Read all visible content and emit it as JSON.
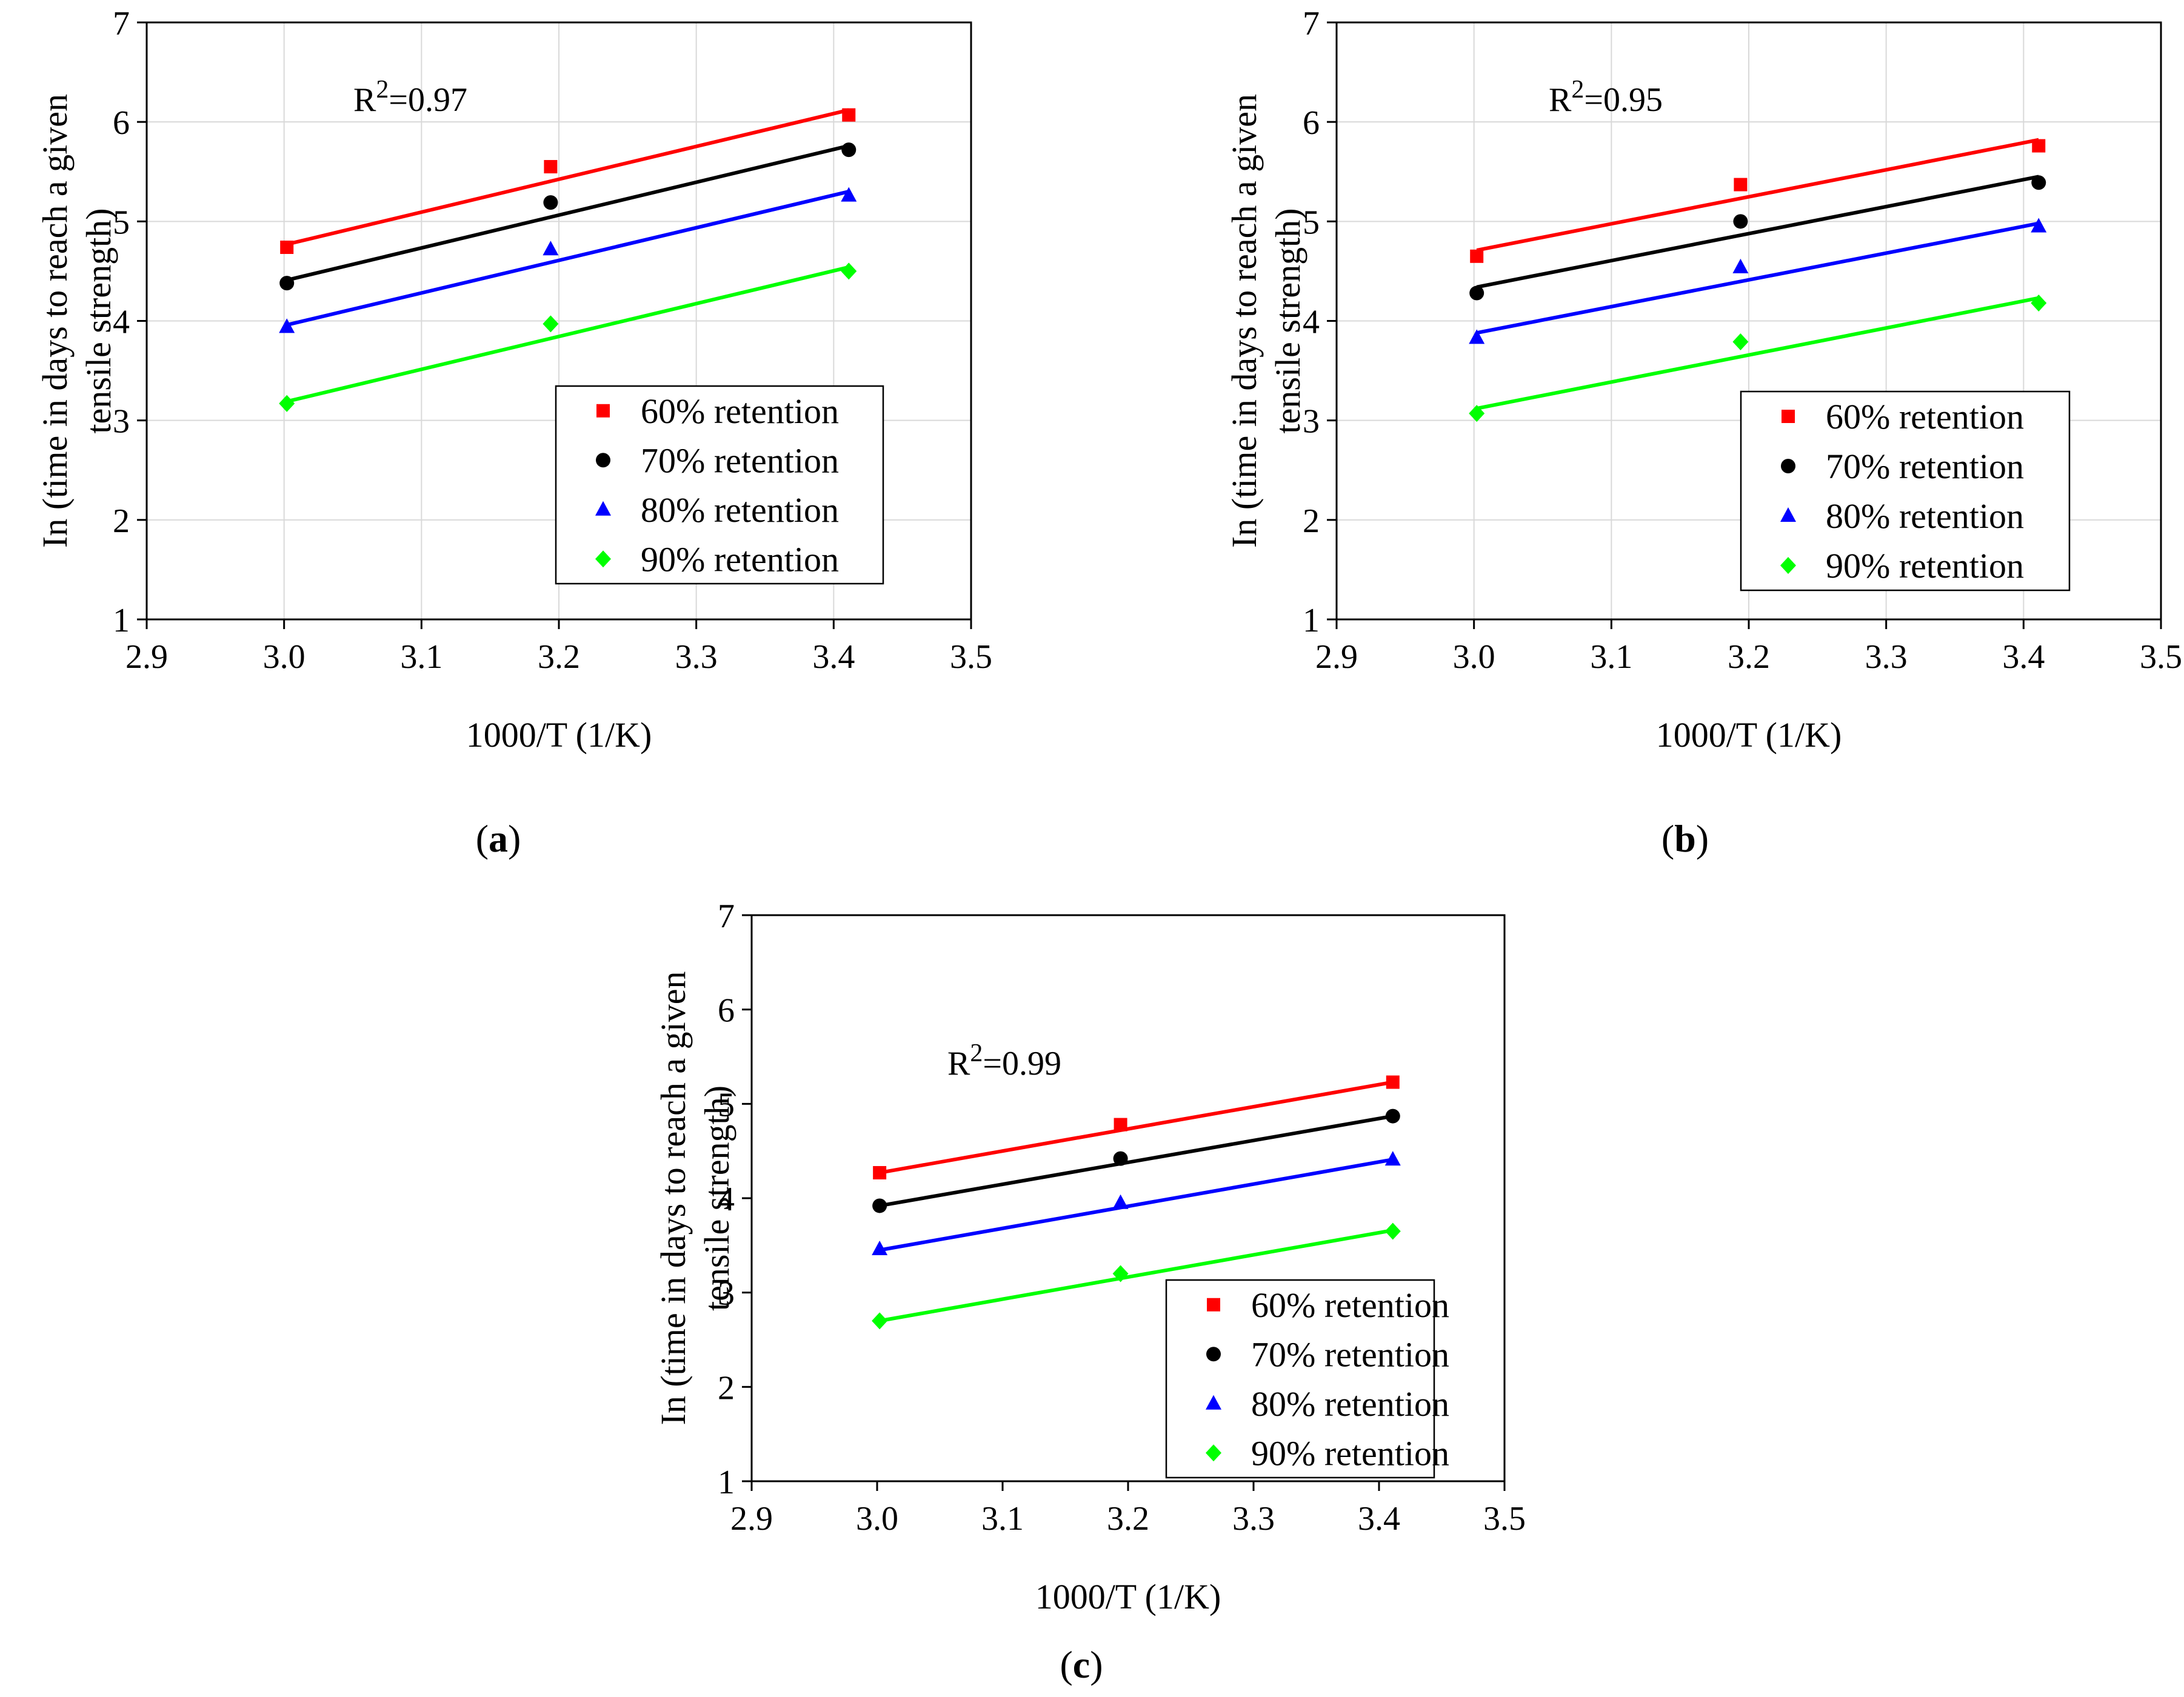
{
  "chart_data": [
    {
      "type": "scatter",
      "panel_label": "a",
      "xlabel": "1000/T (1/K)",
      "ylabel_lines": [
        "In (time in days to reach a given",
        "tensile strength)"
      ],
      "xlim": [
        2.9,
        3.5
      ],
      "ylim": [
        1,
        7
      ],
      "xticks": [
        "2.9",
        "3.0",
        "3.1",
        "3.2",
        "3.3",
        "3.4",
        "3.5"
      ],
      "yticks": [
        "1",
        "2",
        "3",
        "4",
        "5",
        "6",
        "7"
      ],
      "grid": true,
      "legend_position": "bottom-right",
      "annotation": {
        "prefix": "R",
        "sup": "2",
        "suffix": "=0.97"
      },
      "series": [
        {
          "name": "60% retention",
          "marker": "square",
          "color": "#ff0000",
          "x": [
            3.002,
            3.194,
            3.411
          ],
          "y": [
            4.74,
            5.55,
            6.07
          ],
          "fit": [
            4.77,
            6.12
          ]
        },
        {
          "name": "70% retention",
          "marker": "circle",
          "color": "#000000",
          "x": [
            3.002,
            3.194,
            3.411
          ],
          "y": [
            4.38,
            5.19,
            5.72
          ],
          "fit": [
            4.41,
            5.76
          ]
        },
        {
          "name": "80% retention",
          "marker": "triangle",
          "color": "#0000ff",
          "x": [
            3.002,
            3.194,
            3.411
          ],
          "y": [
            3.94,
            4.72,
            5.26
          ],
          "fit": [
            3.96,
            5.3
          ]
        },
        {
          "name": "90% retention",
          "marker": "diamond",
          "color": "#00ff00",
          "x": [
            3.002,
            3.194,
            3.411
          ],
          "y": [
            3.17,
            3.97,
            4.5
          ],
          "fit": [
            3.19,
            4.54
          ]
        }
      ]
    },
    {
      "type": "scatter",
      "panel_label": "b",
      "xlabel": "1000/T (1/K)",
      "ylabel_lines": [
        "In (time in days to reach a given",
        "tensile strength)"
      ],
      "xlim": [
        2.9,
        3.5
      ],
      "ylim": [
        1,
        7
      ],
      "xticks": [
        "2.9",
        "3.0",
        "3.1",
        "3.2",
        "3.3",
        "3.4",
        "3.5"
      ],
      "yticks": [
        "1",
        "2",
        "3",
        "4",
        "5",
        "6",
        "7"
      ],
      "grid": true,
      "legend_position": "bottom-right",
      "annotation": {
        "prefix": "R",
        "sup": "2",
        "suffix": "=0.95"
      },
      "series": [
        {
          "name": "60% retention",
          "marker": "square",
          "color": "#ff0000",
          "x": [
            3.002,
            3.194,
            3.411
          ],
          "y": [
            4.65,
            5.37,
            5.76
          ],
          "fit": [
            4.71,
            5.82
          ]
        },
        {
          "name": "70% retention",
          "marker": "circle",
          "color": "#000000",
          "x": [
            3.002,
            3.194,
            3.411
          ],
          "y": [
            4.28,
            5.0,
            5.39
          ],
          "fit": [
            4.34,
            5.45
          ]
        },
        {
          "name": "80% retention",
          "marker": "triangle",
          "color": "#0000ff",
          "x": [
            3.002,
            3.194,
            3.411
          ],
          "y": [
            3.83,
            4.54,
            4.95
          ],
          "fit": [
            3.88,
            4.98
          ]
        },
        {
          "name": "90% retention",
          "marker": "diamond",
          "color": "#00ff00",
          "x": [
            3.002,
            3.194,
            3.411
          ],
          "y": [
            3.07,
            3.79,
            4.18
          ],
          "fit": [
            3.12,
            4.23
          ]
        }
      ]
    },
    {
      "type": "scatter",
      "panel_label": "c",
      "xlabel": "1000/T (1/K)",
      "ylabel_lines": [
        "In (time in days to reach a given",
        "tensile strength)"
      ],
      "xlim": [
        2.9,
        3.5
      ],
      "ylim": [
        1,
        7
      ],
      "xticks": [
        "2.9",
        "3.0",
        "3.1",
        "3.2",
        "3.3",
        "3.4",
        "3.5"
      ],
      "yticks": [
        "1",
        "2",
        "3",
        "4",
        "5",
        "6",
        "7"
      ],
      "grid": false,
      "legend_position": "bottom-right",
      "annotation": {
        "prefix": "R",
        "sup": "2",
        "suffix": "=0.99"
      },
      "series": [
        {
          "name": "60% retention",
          "marker": "square",
          "color": "#ff0000",
          "x": [
            3.002,
            3.194,
            3.411
          ],
          "y": [
            4.27,
            4.78,
            5.23
          ],
          "fit": [
            4.27,
            5.23
          ]
        },
        {
          "name": "70% retention",
          "marker": "circle",
          "color": "#000000",
          "x": [
            3.002,
            3.194,
            3.411
          ],
          "y": [
            3.92,
            4.42,
            4.87
          ],
          "fit": [
            3.92,
            4.87
          ]
        },
        {
          "name": "80% retention",
          "marker": "triangle",
          "color": "#0000ff",
          "x": [
            3.002,
            3.194,
            3.411
          ],
          "y": [
            3.46,
            3.95,
            4.41
          ],
          "fit": [
            3.45,
            4.41
          ]
        },
        {
          "name": "90% retention",
          "marker": "diamond",
          "color": "#00ff00",
          "x": [
            3.002,
            3.194,
            3.411
          ],
          "y": [
            2.7,
            3.2,
            3.65
          ],
          "fit": [
            2.7,
            3.66
          ]
        }
      ]
    }
  ]
}
